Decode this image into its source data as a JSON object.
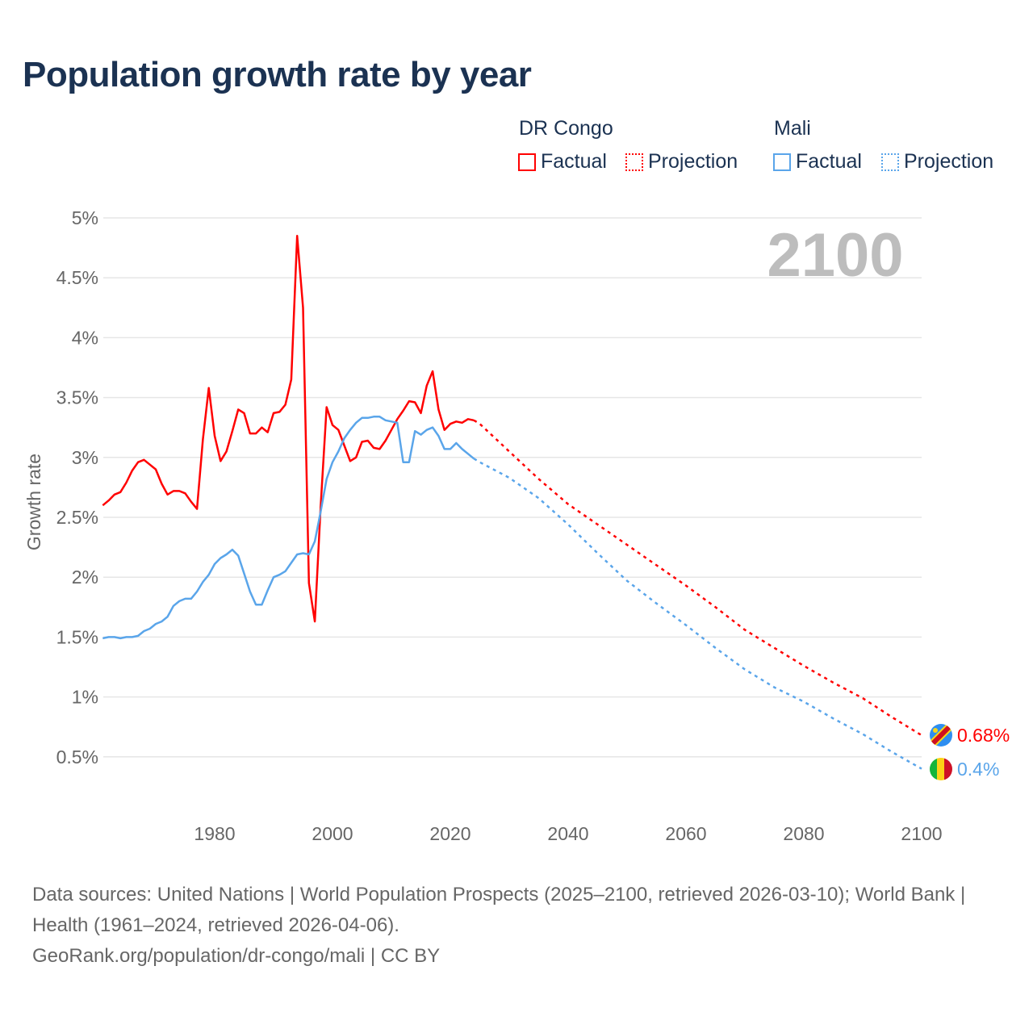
{
  "title": "Population growth rate by year",
  "legend": {
    "groups": [
      {
        "name": "DR Congo",
        "factual": "Factual",
        "projection": "Projection",
        "color": "#ff0000"
      },
      {
        "name": "Mali",
        "factual": "Factual",
        "projection": "Projection",
        "color": "#5aa5ea"
      }
    ]
  },
  "year_display": "2100",
  "footer": {
    "sources": "Data sources: United Nations | World Population Prospects (2025–2100, retrieved 2026-03-10); World Bank | Health (1961–2024, retrieved 2026-04-06).",
    "credit": "GeoRank.org/population/dr-congo/mali | CC BY"
  },
  "chart_data": {
    "type": "line",
    "title": "Population growth rate by year",
    "xlabel": "",
    "ylabel": "Growth rate",
    "xlim": [
      1961,
      2100
    ],
    "ylim": [
      0,
      5
    ],
    "x_ticks": [
      "1980",
      "2000",
      "2020",
      "2040",
      "2060",
      "2080",
      "2100"
    ],
    "x_tick_values": [
      1980,
      2000,
      2020,
      2040,
      2060,
      2080,
      2100
    ],
    "y_ticks": [
      "0.5%",
      "1%",
      "1.5%",
      "2%",
      "2.5%",
      "3%",
      "3.5%",
      "4%",
      "4.5%",
      "5%"
    ],
    "y_tick_values": [
      0.5,
      1,
      1.5,
      2,
      2.5,
      3,
      3.5,
      4,
      4.5,
      5
    ],
    "grid": true,
    "series": [
      {
        "name": "DR Congo",
        "color": "#ff0000",
        "end_label": "0.68%",
        "flag": "dr-congo-flag",
        "factual": {
          "x": [
            1961,
            1962,
            1963,
            1964,
            1965,
            1966,
            1967,
            1968,
            1969,
            1970,
            1971,
            1972,
            1973,
            1974,
            1975,
            1976,
            1977,
            1978,
            1979,
            1980,
            1981,
            1982,
            1983,
            1984,
            1985,
            1986,
            1987,
            1988,
            1989,
            1990,
            1991,
            1992,
            1993,
            1994,
            1995,
            1996,
            1997,
            1998,
            1999,
            2000,
            2001,
            2002,
            2003,
            2004,
            2005,
            2006,
            2007,
            2008,
            2009,
            2010,
            2011,
            2012,
            2013,
            2014,
            2015,
            2016,
            2017,
            2018,
            2019,
            2020,
            2021,
            2022,
            2023,
            2024
          ],
          "y": [
            2.6,
            2.64,
            2.69,
            2.71,
            2.79,
            2.89,
            2.96,
            2.98,
            2.94,
            2.9,
            2.78,
            2.69,
            2.72,
            2.72,
            2.7,
            2.63,
            2.57,
            3.15,
            3.58,
            3.18,
            2.97,
            3.05,
            3.22,
            3.4,
            3.37,
            3.2,
            3.2,
            3.25,
            3.21,
            3.37,
            3.38,
            3.44,
            3.65,
            4.85,
            4.25,
            1.95,
            1.63,
            2.6,
            3.42,
            3.27,
            3.23,
            3.1,
            2.97,
            3.0,
            3.13,
            3.14,
            3.08,
            3.07,
            3.14,
            3.23,
            3.32,
            3.39,
            3.47,
            3.46,
            3.37,
            3.6,
            3.72,
            3.4,
            3.23,
            3.28,
            3.3,
            3.29,
            3.32,
            3.31
          ]
        },
        "projection": {
          "x": [
            2024,
            2025,
            2030,
            2035,
            2040,
            2045,
            2050,
            2055,
            2060,
            2065,
            2070,
            2075,
            2080,
            2085,
            2090,
            2095,
            2100
          ],
          "y": [
            3.31,
            3.28,
            3.05,
            2.82,
            2.61,
            2.44,
            2.27,
            2.1,
            1.93,
            1.75,
            1.56,
            1.41,
            1.26,
            1.12,
            0.99,
            0.83,
            0.68
          ]
        }
      },
      {
        "name": "Mali",
        "color": "#5aa5ea",
        "end_label": "0.4%",
        "flag": "mali-flag",
        "factual": {
          "x": [
            1961,
            1962,
            1963,
            1964,
            1965,
            1966,
            1967,
            1968,
            1969,
            1970,
            1971,
            1972,
            1973,
            1974,
            1975,
            1976,
            1977,
            1978,
            1979,
            1980,
            1981,
            1982,
            1983,
            1984,
            1985,
            1986,
            1987,
            1988,
            1989,
            1990,
            1991,
            1992,
            1993,
            1994,
            1995,
            1996,
            1997,
            1998,
            1999,
            2000,
            2001,
            2002,
            2003,
            2004,
            2005,
            2006,
            2007,
            2008,
            2009,
            2010,
            2011,
            2012,
            2013,
            2014,
            2015,
            2016,
            2017,
            2018,
            2019,
            2020,
            2021,
            2022,
            2023,
            2024
          ],
          "y": [
            1.49,
            1.5,
            1.5,
            1.49,
            1.5,
            1.5,
            1.51,
            1.55,
            1.57,
            1.61,
            1.63,
            1.67,
            1.76,
            1.8,
            1.82,
            1.82,
            1.88,
            1.96,
            2.02,
            2.11,
            2.16,
            2.19,
            2.23,
            2.18,
            2.03,
            1.88,
            1.77,
            1.77,
            1.89,
            2.0,
            2.02,
            2.05,
            2.12,
            2.19,
            2.2,
            2.19,
            2.3,
            2.55,
            2.82,
            2.96,
            3.05,
            3.16,
            3.23,
            3.29,
            3.33,
            3.33,
            3.34,
            3.34,
            3.31,
            3.3,
            3.29,
            2.96,
            2.96,
            3.22,
            3.19,
            3.23,
            3.25,
            3.18,
            3.07,
            3.07,
            3.12,
            3.07,
            3.03,
            2.99
          ]
        },
        "projection": {
          "x": [
            2024,
            2025,
            2030,
            2035,
            2040,
            2045,
            2050,
            2055,
            2060,
            2065,
            2070,
            2075,
            2080,
            2085,
            2090,
            2095,
            2100
          ],
          "y": [
            2.99,
            2.96,
            2.83,
            2.66,
            2.44,
            2.2,
            1.97,
            1.78,
            1.6,
            1.41,
            1.23,
            1.08,
            0.96,
            0.82,
            0.69,
            0.54,
            0.4
          ]
        }
      }
    ]
  }
}
